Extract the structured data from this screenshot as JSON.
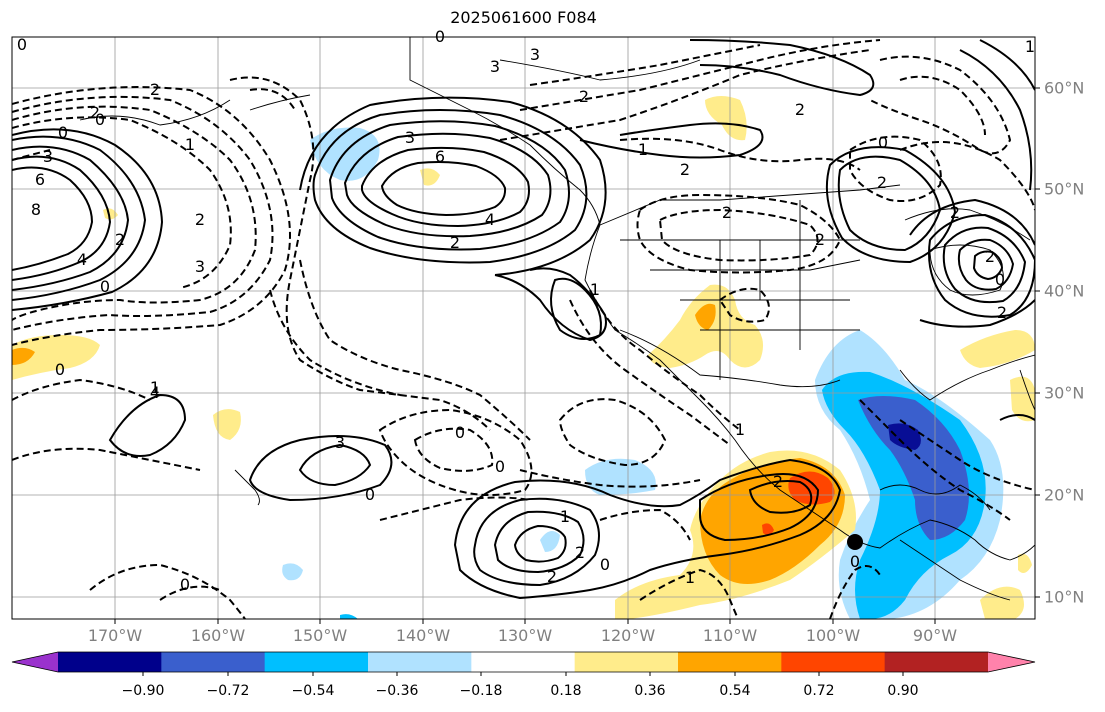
{
  "title": "2025061600 F084",
  "lon_labels": [
    "170°W",
    "160°W",
    "150°W",
    "140°W",
    "130°W",
    "120°W",
    "110°W",
    "100°W",
    "90°W"
  ],
  "lat_labels": [
    "60°N",
    "50°N",
    "40°N",
    "30°N",
    "20°N",
    "10°N"
  ],
  "contour_labels": [
    "0",
    "2",
    "3",
    "2",
    "8",
    "6",
    "4",
    "2",
    "2",
    "1",
    "3",
    "0",
    "0",
    "3",
    "6",
    "4",
    "2",
    "3",
    "3",
    "2",
    "2",
    "1",
    "0",
    "2",
    "2",
    "1",
    "1",
    "2",
    "2",
    "2",
    "0",
    "2",
    "4",
    "3",
    "0",
    "1",
    "0",
    "0",
    "1",
    "2",
    "2",
    "0",
    "1",
    "2",
    "1",
    "0",
    "0",
    "0",
    "0",
    "0",
    "2"
  ],
  "colorbar": {
    "colors": [
      "#9a32cd",
      "#00008b",
      "#3a5fcd",
      "#00bfff",
      "#b0e2ff",
      "#ffffff",
      "#ffec8b",
      "#ffa500",
      "#ff4500",
      "#b22222",
      "#ff82ab"
    ],
    "tick_labels": [
      "−0.90",
      "−0.72",
      "−0.54",
      "−0.36",
      "−0.18",
      "0.18",
      "0.36",
      "0.54",
      "0.72",
      "0.90"
    ]
  }
}
